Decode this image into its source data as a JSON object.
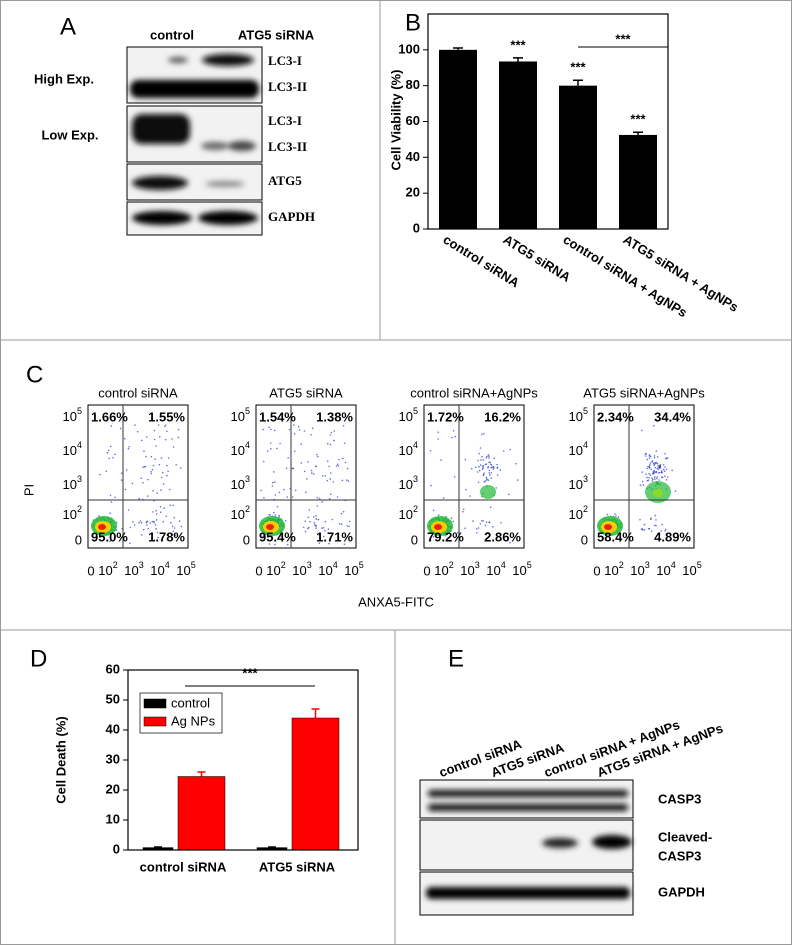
{
  "panel_a": {
    "letter": "A",
    "columns": [
      "control",
      "ATG5 siRNA"
    ],
    "exposures": [
      "High Exp.",
      "Low Exp."
    ],
    "bands": [
      "LC3-I",
      "LC3-II",
      "LC3-I",
      "LC3-II",
      "ATG5",
      "GAPDH"
    ]
  },
  "chart_data": [
    {
      "type": "bar",
      "panel_label": "B",
      "ylabel": "Cell Viability (%)",
      "categories": [
        "control siRNA",
        "ATG5 siRNA",
        "control siRNA + AgNPs",
        "ATG5 siRNA + AgNPs"
      ],
      "values": [
        100,
        93.5,
        80,
        52.5
      ],
      "errors": [
        1,
        2,
        3,
        1.5
      ],
      "color": "#000000",
      "ylim": [
        0,
        120
      ],
      "yticks": [
        0,
        20,
        40,
        60,
        80,
        100
      ],
      "annotations": [
        "***",
        "***",
        "***",
        "***"
      ]
    },
    {
      "type": "grouped_bar",
      "panel_label": "D",
      "ylabel": "Cell Death (%)",
      "categories": [
        "control siRNA",
        "ATG5 siRNA"
      ],
      "series": [
        {
          "name": "control",
          "color": "#000000",
          "values": [
            0.8,
            0.8
          ],
          "errors": [
            0.2,
            0.2
          ]
        },
        {
          "name": "Ag NPs",
          "color": "#ff0000",
          "values": [
            24.5,
            44
          ],
          "errors": [
            1.5,
            3
          ]
        }
      ],
      "ylim": [
        0,
        60
      ],
      "yticks": [
        0,
        10,
        20,
        30,
        40,
        50,
        60
      ],
      "legend": "upper-left",
      "annotations": [
        "***"
      ]
    }
  ],
  "panel_c": {
    "letter": "C",
    "ylabel": "PI",
    "xlabel": "ANXA5-FITC",
    "ticks": [
      "0",
      {
        "base": "10",
        "exp": "2"
      },
      {
        "base": "10",
        "exp": "3"
      },
      {
        "base": "10",
        "exp": "4"
      },
      {
        "base": "10",
        "exp": "5"
      }
    ],
    "plots": [
      {
        "title": "control siRNA",
        "quadrants": [
          "1.66%",
          "1.55%",
          "95.0%",
          "1.78%"
        ]
      },
      {
        "title": "ATG5 siRNA",
        "quadrants": [
          "1.54%",
          "1.38%",
          "95.4%",
          "1.71%"
        ]
      },
      {
        "title": "control siRNA+AgNPs",
        "quadrants": [
          "1.72%",
          "16.2%",
          "79.2%",
          "2.86%"
        ]
      },
      {
        "title": "ATG5 siRNA+AgNPs",
        "quadrants": [
          "2.34%",
          "34.4%",
          "58.4%",
          "4.89%"
        ]
      }
    ]
  },
  "panel_e": {
    "letter": "E",
    "columns": [
      "control siRNA",
      "ATG5 siRNA",
      "control siRNA + AgNPs",
      "ATG5 siRNA + AgNPs"
    ],
    "bands": [
      "CASP3",
      [
        "Cleaved-",
        "CASP3"
      ],
      "GAPDH"
    ]
  }
}
